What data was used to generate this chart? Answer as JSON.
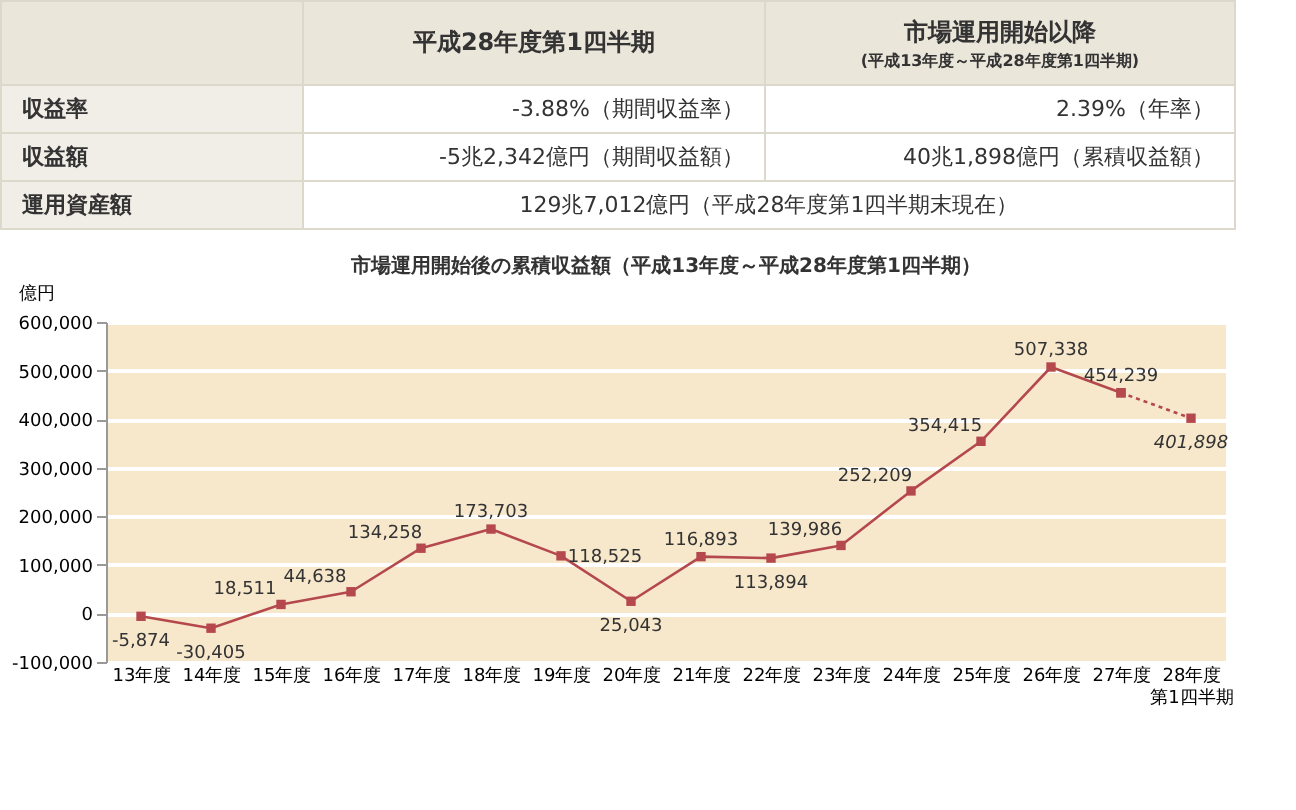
{
  "chart_data": [
    {
      "type": "other",
      "annotations": [
        "平成28年度第1四半期",
        "市場運用開始以降",
        "(平成13年度～平成28年度第1四半期)",
        "収益率",
        "-3.88%（期間収益率）",
        "2.39%（年率）",
        "収益額",
        "-5兆2,342億円（期間収益額）",
        "40兆1,898億円（累積収益額）",
        "運用資産額",
        "129兆7,012億円（平成28年度第1四半期末現在）"
      ]
    },
    {
      "type": "line",
      "title": "市場運用開始後の累積収益額（平成13年度～平成28年度第1四半期）",
      "ylabel": "億円",
      "categories": [
        "13年度",
        "14年度",
        "15年度",
        "16年度",
        "17年度",
        "18年度",
        "19年度",
        "20年度",
        "21年度",
        "22年度",
        "23年度",
        "24年度",
        "25年度",
        "26年度",
        "27年度",
        "28年度第1四半期"
      ],
      "series": [
        {
          "color": "#b5484c",
          "line_style": "solid",
          "values": [
            -5874,
            -30405,
            18511,
            44638,
            134258,
            173703,
            118525,
            25043,
            116893,
            113894,
            139986,
            252209,
            354415,
            507338,
            454239,
            null
          ],
          "value_labels": [
            "-5,874",
            "-30,405",
            "18,511",
            "44,638",
            "134,258",
            "173,703",
            "118,525",
            "25,043",
            "116,893",
            "113,894",
            "139,986",
            "252,209",
            "354,415",
            "507,338",
            "454,239",
            null
          ]
        },
        {
          "color": "#b5484c",
          "line_style": "dotted",
          "values": [
            null,
            null,
            null,
            null,
            null,
            null,
            null,
            null,
            null,
            null,
            null,
            null,
            null,
            null,
            454239,
            401898
          ],
          "value_labels": [
            null,
            null,
            null,
            null,
            null,
            null,
            null,
            null,
            null,
            null,
            null,
            null,
            null,
            null,
            null,
            "401,898"
          ]
        }
      ],
      "ylim": [
        -100000,
        600000
      ],
      "yticks": [
        {
          "value": -100000,
          "label": "-100,000"
        },
        0,
        {
          "value": 100000,
          "label": "100,000"
        },
        {
          "value": 200000,
          "label": "200,000"
        },
        {
          "value": 300000,
          "label": "300,000"
        },
        {
          "value": 400000,
          "label": "400,000"
        },
        {
          "value": 500000,
          "label": "500,000"
        },
        {
          "value": 600000,
          "label": "600,000"
        }
      ],
      "grid": "y",
      "marker": "square"
    }
  ]
}
